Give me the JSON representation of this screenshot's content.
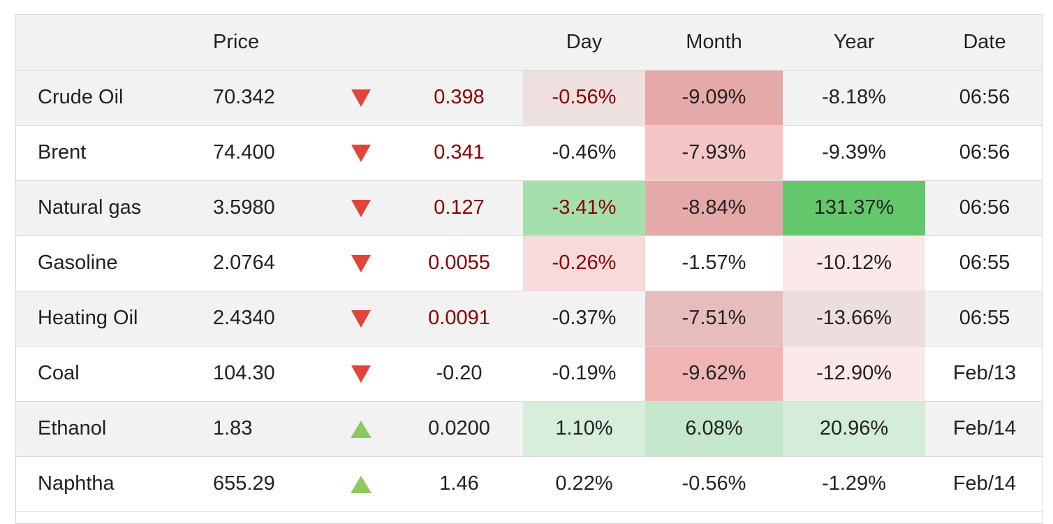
{
  "headers": {
    "name": "",
    "price": "Price",
    "arrow": "",
    "change": "",
    "day": "Day",
    "month": "Month",
    "year": "Year",
    "date": "Date"
  },
  "colors": {
    "down_arrow": "#e0443a",
    "up_arrow": "#8fc85e",
    "negative_change_text": "#8b0000"
  },
  "rows": [
    {
      "name": "Crude Oil",
      "price": "70.342",
      "direction": "down",
      "change": "0.398",
      "change_negative": true,
      "day": "-0.56%",
      "month": "-9.09%",
      "year": "-8.18%",
      "date": "06:56",
      "day_bg": "#efe0e0",
      "month_bg": "#e6a9aa",
      "year_bg": ""
    },
    {
      "name": "Brent",
      "price": "74.400",
      "direction": "down",
      "change": "0.341",
      "change_negative": true,
      "day": "-0.46%",
      "month": "-7.93%",
      "year": "-9.39%",
      "date": "06:56",
      "day_bg": "",
      "month_bg": "#f4c6c6",
      "year_bg": ""
    },
    {
      "name": "Natural gas",
      "price": "3.5980",
      "direction": "down",
      "change": "0.127",
      "change_negative": true,
      "day": "-3.41%",
      "month": "-8.84%",
      "year": "131.37%",
      "date": "06:56",
      "day_bg": "#a4dfac",
      "month_bg": "#e5a9aa",
      "year_bg": "#63c86b"
    },
    {
      "name": "Gasoline",
      "price": "2.0764",
      "direction": "down",
      "change": "0.0055",
      "change_negative": true,
      "day": "-0.26%",
      "month": "-1.57%",
      "year": "-10.12%",
      "date": "06:55",
      "day_bg": "#f7dada",
      "month_bg": "",
      "year_bg": "#fbe9e9"
    },
    {
      "name": "Heating Oil",
      "price": "2.4340",
      "direction": "down",
      "change": "0.0091",
      "change_negative": true,
      "day": "-0.37%",
      "month": "-7.51%",
      "year": "-13.66%",
      "date": "06:55",
      "day_bg": "",
      "month_bg": "#e7bcbd",
      "year_bg": "#eddede"
    },
    {
      "name": "Coal",
      "price": "104.30",
      "direction": "down",
      "change": "-0.20",
      "change_negative": false,
      "day": "-0.19%",
      "month": "-9.62%",
      "year": "-12.90%",
      "date": "Feb/13",
      "day_bg": "",
      "month_bg": "#f1b4b5",
      "year_bg": "#fbe9e9"
    },
    {
      "name": "Ethanol",
      "price": "1.83",
      "direction": "up",
      "change": "0.0200",
      "change_negative": false,
      "day": "1.10%",
      "month": "6.08%",
      "year": "20.96%",
      "date": "Feb/14",
      "day_bg": "#d6eedb",
      "month_bg": "#c5e7cb",
      "year_bg": "#d4edd9"
    },
    {
      "name": "Naphtha",
      "price": "655.29",
      "direction": "up",
      "change": "1.46",
      "change_negative": false,
      "day": "0.22%",
      "month": "-0.56%",
      "year": "-1.29%",
      "date": "Feb/14",
      "day_bg": "",
      "month_bg": "",
      "year_bg": ""
    }
  ]
}
